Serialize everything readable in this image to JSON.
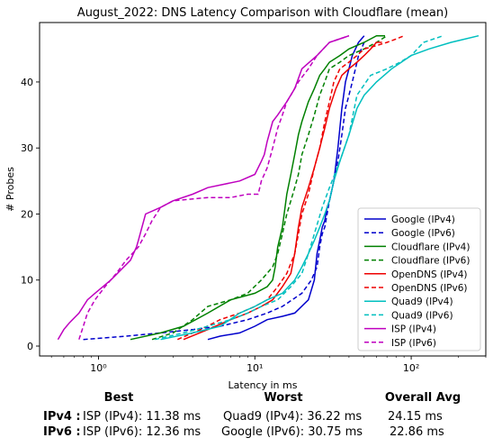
{
  "chart_data": {
    "type": "line",
    "title": "August_2022: DNS Latency Comparison with Cloudflare (mean)",
    "xlabel": "Latency in ms",
    "ylabel": "# Probes",
    "xscale": "log",
    "xlim": [
      0.42,
      300
    ],
    "ylim": [
      -1.5,
      49
    ],
    "x_ticks": [
      1,
      10,
      100
    ],
    "x_tick_labels": [
      "10⁰",
      "10¹",
      "10²"
    ],
    "y_ticks": [
      0,
      10,
      20,
      30,
      40
    ],
    "grid": false,
    "legend_position": "lower-right",
    "series": [
      {
        "name": "Google (IPv4)",
        "color": "#0000cc",
        "dash": "solid",
        "x": [
          5,
          6,
          8,
          10,
          12,
          15,
          18,
          22,
          24,
          25,
          26,
          26.5,
          27,
          28,
          29,
          30,
          32,
          34,
          35,
          36,
          37,
          38,
          40,
          42,
          44,
          46,
          50
        ],
        "y": [
          1,
          1.5,
          2,
          3,
          4,
          4.5,
          5,
          7,
          10,
          14,
          16,
          17,
          18,
          19,
          21,
          22,
          25,
          30,
          33,
          36,
          38,
          40,
          42,
          44,
          45,
          46,
          47
        ]
      },
      {
        "name": "Google (IPv6)",
        "color": "#0000cc",
        "dash": "dashed",
        "x": [
          0.8,
          1.5,
          2.5,
          4,
          6,
          9,
          12,
          15,
          20,
          23,
          25,
          26,
          27,
          28,
          29,
          30,
          32,
          34,
          36,
          38,
          40,
          42,
          44,
          46,
          48,
          50
        ],
        "y": [
          1,
          1.5,
          2,
          2.5,
          3,
          4,
          5,
          6,
          8,
          10,
          12,
          15,
          17,
          18,
          20,
          22,
          25,
          28,
          32,
          36,
          38,
          40,
          42,
          44,
          45,
          46
        ]
      },
      {
        "name": "Cloudflare (IPv4)",
        "color": "#008000",
        "dash": "solid",
        "x": [
          1.6,
          2.5,
          3.5,
          5,
          7,
          10,
          12,
          13,
          13.5,
          14,
          15,
          16,
          17,
          18,
          19,
          20,
          22,
          24,
          26,
          28,
          30,
          35,
          40,
          50,
          60,
          68
        ],
        "y": [
          1,
          2,
          3,
          5,
          7,
          8,
          9,
          10,
          12,
          15,
          18,
          23,
          26,
          29,
          32,
          34,
          37,
          39,
          41,
          42,
          43,
          44,
          45,
          46,
          47,
          47
        ]
      },
      {
        "name": "Cloudflare (IPv6)",
        "color": "#008000",
        "dash": "dashed",
        "x": [
          2.2,
          3,
          4,
          5,
          7,
          9,
          11,
          13,
          14,
          15,
          16,
          17,
          18,
          19,
          20,
          22,
          24,
          26,
          28,
          30,
          35,
          40,
          50,
          60,
          70
        ],
        "y": [
          1,
          2,
          4,
          6,
          7,
          8,
          10,
          12,
          14,
          17,
          20,
          22,
          24,
          26,
          29,
          32,
          35,
          38,
          40,
          42,
          43,
          44,
          45,
          46,
          47
        ]
      },
      {
        "name": "OpenDNS (IPv4)",
        "color": "#ee0000",
        "dash": "solid",
        "x": [
          3.5,
          5,
          7,
          9,
          11,
          13,
          15,
          17,
          18,
          19,
          20,
          22,
          24,
          26,
          28,
          30,
          33,
          36,
          40,
          45,
          50,
          55,
          60,
          65
        ],
        "y": [
          1,
          2.5,
          4,
          5,
          6,
          7,
          9,
          11,
          14,
          18,
          21,
          24,
          27,
          30,
          33,
          36,
          39,
          41,
          42,
          43,
          44,
          45,
          46,
          46
        ]
      },
      {
        "name": "OpenDNS (IPv6)",
        "color": "#ee0000",
        "dash": "dashed",
        "x": [
          3.2,
          4.5,
          6,
          8,
          10,
          12,
          14,
          16,
          18,
          19,
          20,
          22,
          24,
          26,
          28,
          30,
          32,
          35,
          40,
          45,
          50,
          60,
          70,
          80,
          90
        ],
        "y": [
          1,
          2.5,
          4,
          5,
          6,
          7,
          9,
          11,
          14,
          17,
          20,
          23,
          27,
          30,
          34,
          37,
          40,
          42,
          43,
          44,
          45,
          45.5,
          46,
          46.5,
          47
        ]
      },
      {
        "name": "Quad9 (IPv4)",
        "color": "#00bfbf",
        "dash": "solid",
        "x": [
          2.5,
          4,
          6,
          8,
          10,
          12,
          15,
          18,
          20,
          22,
          24,
          26,
          28,
          30,
          32,
          35,
          40,
          45,
          50,
          60,
          75,
          100,
          130,
          180,
          270
        ],
        "y": [
          1,
          2,
          3,
          5,
          6,
          7,
          8,
          10,
          12,
          14,
          16,
          18,
          20,
          22,
          25,
          28,
          32,
          36,
          38,
          40,
          42,
          44,
          45,
          46,
          47
        ]
      },
      {
        "name": "Quad9 (IPv6)",
        "color": "#00bfbf",
        "dash": "dashed",
        "x": [
          2.3,
          3.5,
          5,
          7,
          9,
          11,
          14,
          17,
          20,
          22,
          24,
          27,
          30,
          35,
          40,
          45,
          55,
          70,
          85,
          100,
          120,
          160
        ],
        "y": [
          1,
          2,
          3,
          4,
          5,
          6,
          7,
          9,
          11,
          14,
          17,
          21,
          24,
          28,
          32,
          38,
          41,
          42,
          43,
          44,
          46,
          47
        ]
      },
      {
        "name": "ISP (IPv4)",
        "color": "#bf00bf",
        "dash": "solid",
        "x": [
          0.55,
          0.6,
          0.65,
          0.75,
          0.85,
          0.95,
          1.2,
          1.6,
          1.75,
          1.8,
          2,
          2.5,
          3,
          4,
          5,
          8,
          10,
          11,
          11.5,
          12,
          13,
          14,
          16,
          18,
          20,
          25,
          30,
          40
        ],
        "y": [
          1,
          2.5,
          3.5,
          5,
          7,
          8,
          10,
          13,
          15,
          16,
          20,
          21,
          22,
          23,
          24,
          25,
          26,
          28,
          29,
          31,
          34,
          35,
          37,
          39,
          42,
          44,
          46,
          47
        ]
      },
      {
        "name": "ISP (IPv6)",
        "color": "#bf00bf",
        "dash": "dashed",
        "x": [
          0.75,
          0.8,
          0.85,
          0.95,
          1.1,
          1.3,
          1.5,
          1.8,
          2,
          2.2,
          2.5,
          3,
          5,
          7,
          9,
          10.5,
          11,
          12,
          13,
          14,
          15,
          16,
          17,
          19,
          22,
          25,
          30,
          40
        ],
        "y": [
          1,
          3,
          5,
          7,
          9,
          11,
          13,
          15,
          17,
          19,
          21,
          22,
          22.5,
          22.5,
          23,
          23,
          25,
          27,
          30,
          33,
          35,
          37,
          38,
          40,
          42,
          44,
          46,
          47
        ]
      }
    ]
  },
  "summary": {
    "headers": {
      "best": "Best",
      "worst": "Worst",
      "avg": "Overall Avg"
    },
    "rows": [
      {
        "label": "IPv4 :",
        "best": "ISP (IPv4): 11.38 ms",
        "worst": "Quad9 (IPv4): 36.22 ms",
        "avg": "24.15 ms"
      },
      {
        "label": "IPv6 :",
        "best": "ISP (IPv6): 12.36 ms",
        "worst": "Google (IPv6): 30.75 ms",
        "avg": "22.86 ms"
      }
    ]
  }
}
